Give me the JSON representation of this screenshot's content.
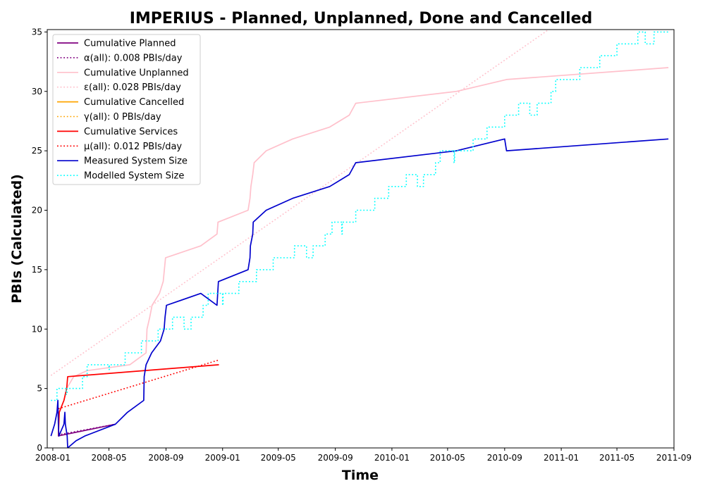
{
  "chart_data": {
    "type": "line",
    "title": "IMPERIUS - Planned, Unplanned, Done  and Cancelled",
    "xlabel": "Time",
    "ylabel": "PBIs (Calculated)",
    "xlim": [
      "2007-12-20",
      "2011-09-01"
    ],
    "ylim": [
      0,
      35.2
    ],
    "x_ticks": [
      "2008-01",
      "2008-05",
      "2008-09",
      "2009-01",
      "2009-05",
      "2009-09",
      "2010-01",
      "2010-05",
      "2010-09",
      "2011-01",
      "2011-05",
      "2011-09"
    ],
    "x_tick_dates": [
      "2008-01-01",
      "2008-05-01",
      "2008-09-01",
      "2009-01-01",
      "2009-05-01",
      "2009-09-01",
      "2010-01-01",
      "2010-05-01",
      "2010-09-01",
      "2011-01-01",
      "2011-05-01",
      "2011-09-01"
    ],
    "y_ticks": [
      0,
      5,
      10,
      15,
      20,
      25,
      30,
      35
    ],
    "grid": false,
    "legend_position": "top-left",
    "series": [
      {
        "name": "Cumulative Planned",
        "color": "#800080",
        "style": "solid",
        "points": [
          [
            "2008-01-12",
            1
          ],
          [
            "2008-05-15",
            2
          ]
        ]
      },
      {
        "name": "α(all): 0.008 PBIs/day",
        "color": "#800080",
        "style": "dotted",
        "points": [
          [
            "2008-01-12",
            1.1
          ],
          [
            "2008-05-15",
            2.0
          ]
        ]
      },
      {
        "name": "Cumulative Unplanned",
        "color": "#ffc0cb",
        "style": "solid",
        "points": [
          [
            "2008-01-13",
            1
          ],
          [
            "2008-01-14",
            3
          ],
          [
            "2008-01-25",
            4
          ],
          [
            "2008-01-31",
            5
          ],
          [
            "2008-02-15",
            6
          ],
          [
            "2008-03-15",
            6.5
          ],
          [
            "2008-06-15",
            7
          ],
          [
            "2008-07-20",
            8
          ],
          [
            "2008-07-22",
            10
          ],
          [
            "2008-07-28",
            11
          ],
          [
            "2008-08-02",
            12
          ],
          [
            "2008-08-18",
            13
          ],
          [
            "2008-08-26",
            14
          ],
          [
            "2008-08-31",
            16
          ],
          [
            "2008-11-15",
            17
          ],
          [
            "2008-12-20",
            18
          ],
          [
            "2008-12-22",
            19
          ],
          [
            "2009-02-25",
            20
          ],
          [
            "2009-03-01",
            21
          ],
          [
            "2009-03-03",
            22
          ],
          [
            "2009-03-07",
            23
          ],
          [
            "2009-03-10",
            24
          ],
          [
            "2009-04-05",
            25
          ],
          [
            "2009-06-01",
            26
          ],
          [
            "2009-08-20",
            27
          ],
          [
            "2009-10-01",
            28
          ],
          [
            "2009-10-15",
            29
          ],
          [
            "2010-05-20",
            30
          ],
          [
            "2010-09-05",
            31
          ],
          [
            "2011-08-20",
            32
          ]
        ]
      },
      {
        "name": "ε(all): 0.028 PBIs/day",
        "color": "#ffc0cb",
        "style": "dotted",
        "points": [
          [
            "2007-12-28",
            6.1
          ],
          [
            "2010-12-05",
            35.2
          ]
        ]
      },
      {
        "name": "Cumulative Cancelled",
        "color": "#ffa500",
        "style": "solid",
        "points": []
      },
      {
        "name": "γ(all): 0 PBIs/day",
        "color": "#ffa500",
        "style": "dotted",
        "points": []
      },
      {
        "name": "Cumulative Services",
        "color": "#ff0000",
        "style": "solid",
        "points": [
          [
            "2008-01-13",
            1
          ],
          [
            "2008-01-15",
            3
          ],
          [
            "2008-01-25",
            4
          ],
          [
            "2008-01-31",
            5
          ],
          [
            "2008-02-02",
            6
          ],
          [
            "2008-12-24",
            7
          ]
        ]
      },
      {
        "name": "μ(all): 0.012 PBIs/day",
        "color": "#ff0000",
        "style": "dotted",
        "points": [
          [
            "2008-01-13",
            3.3
          ],
          [
            "2008-12-24",
            7.4
          ]
        ]
      },
      {
        "name": "Measured System Size",
        "color": "#0000cd",
        "style": "solid",
        "points": [
          [
            "2007-12-28",
            1
          ],
          [
            "2008-01-05",
            2
          ],
          [
            "2008-01-10",
            3
          ],
          [
            "2008-01-12",
            4
          ],
          [
            "2008-01-13",
            2
          ],
          [
            "2008-01-14",
            1
          ],
          [
            "2008-01-25",
            2
          ],
          [
            "2008-01-27",
            3
          ],
          [
            "2008-01-28",
            2
          ],
          [
            "2008-02-01",
            1
          ],
          [
            "2008-02-02",
            0
          ],
          [
            "2008-02-20",
            0.6
          ],
          [
            "2008-03-10",
            1
          ],
          [
            "2008-05-15",
            2
          ],
          [
            "2008-06-10",
            3
          ],
          [
            "2008-07-15",
            4
          ],
          [
            "2008-07-16",
            6
          ],
          [
            "2008-07-20",
            7
          ],
          [
            "2008-08-01",
            8
          ],
          [
            "2008-08-20",
            9
          ],
          [
            "2008-08-28",
            10
          ],
          [
            "2008-08-30",
            11
          ],
          [
            "2008-09-02",
            12
          ],
          [
            "2008-11-15",
            13
          ],
          [
            "2008-12-20",
            12
          ],
          [
            "2008-12-23",
            14
          ],
          [
            "2009-02-25",
            15
          ],
          [
            "2009-03-01",
            16
          ],
          [
            "2009-03-02",
            17
          ],
          [
            "2009-03-07",
            18
          ],
          [
            "2009-03-08",
            19
          ],
          [
            "2009-04-05",
            20
          ],
          [
            "2009-06-01",
            21
          ],
          [
            "2009-08-20",
            22
          ],
          [
            "2009-10-01",
            23
          ],
          [
            "2009-10-15",
            24
          ],
          [
            "2010-05-20",
            25
          ],
          [
            "2010-09-01",
            26
          ],
          [
            "2010-09-05",
            25
          ],
          [
            "2011-08-20",
            26
          ]
        ]
      },
      {
        "name": "Modelled System Size",
        "color": "#00ffff",
        "style": "dotted",
        "points": [
          [
            "2007-12-28",
            4
          ],
          [
            "2008-01-10",
            4
          ],
          [
            "2008-01-10",
            5
          ],
          [
            "2008-01-30",
            5
          ],
          [
            "2008-01-30",
            4.5
          ],
          [
            "2008-02-01",
            4.5
          ],
          [
            "2008-02-01",
            5
          ],
          [
            "2008-03-05",
            5
          ],
          [
            "2008-03-05",
            6
          ],
          [
            "2008-03-15",
            6
          ],
          [
            "2008-03-15",
            7
          ],
          [
            "2008-05-01",
            7
          ],
          [
            "2008-05-01",
            6.6
          ],
          [
            "2008-05-02",
            6.6
          ],
          [
            "2008-05-02",
            7
          ],
          [
            "2008-06-05",
            7
          ],
          [
            "2008-06-05",
            8
          ],
          [
            "2008-07-10",
            8
          ],
          [
            "2008-07-10",
            9
          ],
          [
            "2008-08-15",
            9
          ],
          [
            "2008-08-15",
            10
          ],
          [
            "2008-09-15",
            10
          ],
          [
            "2008-09-15",
            11
          ],
          [
            "2008-10-10",
            11
          ],
          [
            "2008-10-10",
            10
          ],
          [
            "2008-10-25",
            10
          ],
          [
            "2008-10-25",
            11
          ],
          [
            "2008-11-20",
            11
          ],
          [
            "2008-11-20",
            12
          ],
          [
            "2008-12-01",
            12
          ],
          [
            "2008-12-01",
            13
          ],
          [
            "2009-01-01",
            13
          ],
          [
            "2009-01-01",
            12
          ],
          [
            "2009-01-02",
            12
          ],
          [
            "2009-01-02",
            13
          ],
          [
            "2009-02-05",
            13
          ],
          [
            "2009-02-05",
            14
          ],
          [
            "2009-03-15",
            14
          ],
          [
            "2009-03-15",
            15
          ],
          [
            "2009-04-20",
            15
          ],
          [
            "2009-04-20",
            16
          ],
          [
            "2009-06-05",
            16
          ],
          [
            "2009-06-05",
            17
          ],
          [
            "2009-07-01",
            17
          ],
          [
            "2009-07-01",
            16
          ],
          [
            "2009-07-15",
            16
          ],
          [
            "2009-07-15",
            17
          ],
          [
            "2009-08-10",
            17
          ],
          [
            "2009-08-10",
            18
          ],
          [
            "2009-08-25",
            18
          ],
          [
            "2009-08-25",
            19
          ],
          [
            "2009-09-15",
            19
          ],
          [
            "2009-09-15",
            18
          ],
          [
            "2009-09-16",
            18
          ],
          [
            "2009-09-16",
            19
          ],
          [
            "2009-10-15",
            19
          ],
          [
            "2009-10-15",
            20
          ],
          [
            "2009-11-25",
            20
          ],
          [
            "2009-11-25",
            21
          ],
          [
            "2009-12-25",
            21
          ],
          [
            "2009-12-25",
            22
          ],
          [
            "2010-02-01",
            22
          ],
          [
            "2010-02-01",
            23
          ],
          [
            "2010-02-25",
            23
          ],
          [
            "2010-02-25",
            22
          ],
          [
            "2010-03-10",
            22
          ],
          [
            "2010-03-10",
            23
          ],
          [
            "2010-04-05",
            23
          ],
          [
            "2010-04-05",
            24
          ],
          [
            "2010-04-15",
            24
          ],
          [
            "2010-04-15",
            25
          ],
          [
            "2010-05-15",
            25
          ],
          [
            "2010-05-15",
            24
          ],
          [
            "2010-05-16",
            24
          ],
          [
            "2010-05-16",
            25
          ],
          [
            "2010-06-25",
            25
          ],
          [
            "2010-06-25",
            26
          ],
          [
            "2010-07-25",
            26
          ],
          [
            "2010-07-25",
            27
          ],
          [
            "2010-09-01",
            27
          ],
          [
            "2010-09-01",
            28
          ],
          [
            "2010-10-01",
            28
          ],
          [
            "2010-10-01",
            29
          ],
          [
            "2010-10-25",
            29
          ],
          [
            "2010-10-25",
            28
          ],
          [
            "2010-11-10",
            28
          ],
          [
            "2010-11-10",
            29
          ],
          [
            "2010-12-10",
            29
          ],
          [
            "2010-12-10",
            30
          ],
          [
            "2010-12-20",
            30
          ],
          [
            "2010-12-20",
            31
          ],
          [
            "2011-02-10",
            31
          ],
          [
            "2011-02-10",
            32
          ],
          [
            "2011-03-25",
            32
          ],
          [
            "2011-03-25",
            33
          ],
          [
            "2011-05-01",
            33
          ],
          [
            "2011-05-01",
            34
          ],
          [
            "2011-06-15",
            34
          ],
          [
            "2011-06-15",
            35
          ],
          [
            "2011-07-01",
            35
          ],
          [
            "2011-07-01",
            34
          ],
          [
            "2011-07-20",
            34
          ],
          [
            "2011-07-20",
            35
          ],
          [
            "2011-08-20",
            35
          ]
        ]
      }
    ]
  }
}
